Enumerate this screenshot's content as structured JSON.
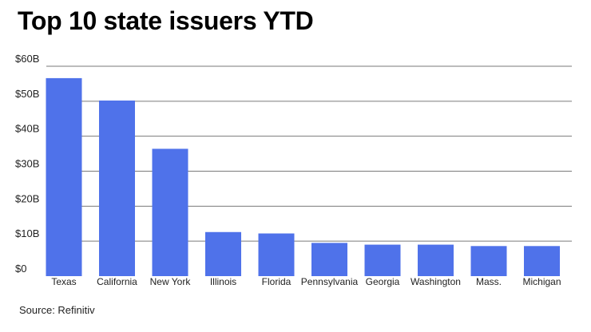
{
  "title": "Top 10 state issuers YTD",
  "source": "Source: Refinitiv",
  "colors": {
    "bar": "#4f72ea",
    "grid": "#7a7a7a",
    "text": "#222222"
  },
  "chart_data": {
    "type": "bar",
    "title": "Top 10 state issuers YTD",
    "xlabel": "",
    "ylabel": "",
    "ylim": [
      0,
      60
    ],
    "yticks": [
      0,
      10,
      20,
      30,
      40,
      50,
      60
    ],
    "ytick_labels": [
      "$0",
      "$10B",
      "$20B",
      "$30B",
      "$40B",
      "$50B",
      "$60B"
    ],
    "grid": true,
    "categories": [
      "Texas",
      "California",
      "New York",
      "Illinois",
      "Florida",
      "Pennsylvania",
      "Georgia",
      "Washington",
      "Mass.",
      "Michigan"
    ],
    "values": [
      56.6,
      50.2,
      36.4,
      12.6,
      12.2,
      9.5,
      9.0,
      9.0,
      8.6,
      8.6
    ]
  }
}
